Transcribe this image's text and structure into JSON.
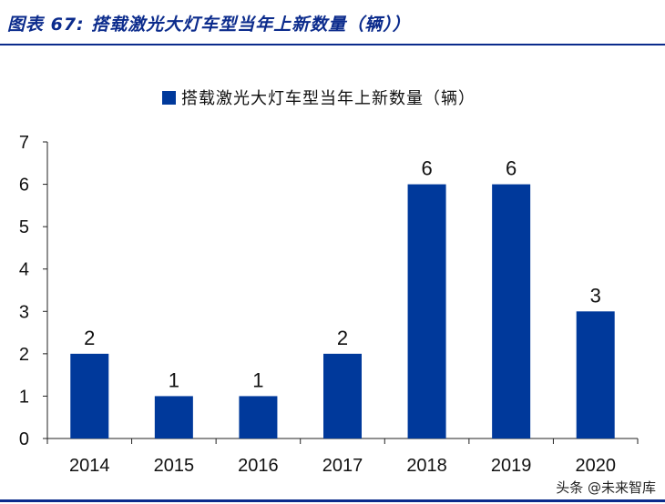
{
  "figure_title": "图表 67:  搭载激光大灯车型当年上新数量（辆））",
  "watermark": "头条 @未来智库",
  "colors": {
    "bar": "#00399b",
    "title": "#0b2b8c"
  },
  "chart_data": {
    "type": "bar",
    "categories": [
      "2014",
      "2015",
      "2016",
      "2017",
      "2018",
      "2019",
      "2020"
    ],
    "series": [
      {
        "name": "搭载激光大灯车型当年上新数量（辆）",
        "values": [
          2,
          1,
          1,
          2,
          6,
          6,
          3
        ]
      }
    ],
    "ylim": [
      0,
      7
    ],
    "yticks": [
      0,
      1,
      2,
      3,
      4,
      5,
      6,
      7
    ],
    "legend_position": "top-center",
    "grid": false,
    "data_labels": true
  }
}
